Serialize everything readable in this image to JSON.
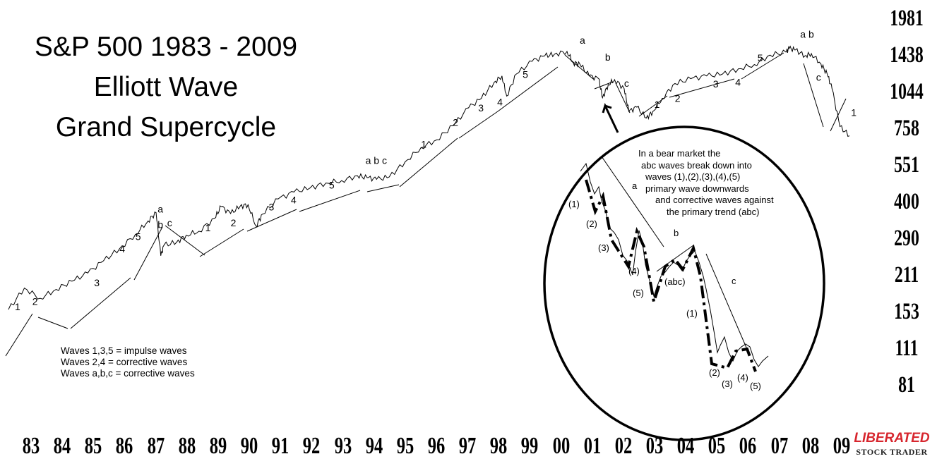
{
  "title_lines": [
    "S&P 500 1983 - 2009",
    "Elliott Wave",
    "Grand Supercycle"
  ],
  "legend_lines": [
    "Waves 1,3,5 = impulse waves",
    "Waves 2,4 = corrective waves",
    "Waves a,b,c = corrective waves"
  ],
  "inset_note_lines": [
    "In a bear market the",
    "abc waves break down into",
    "waves (1),(2),(3),(4),(5)",
    "primary wave downwards",
    "and corrective waves against",
    "the primary trend (abc)"
  ],
  "brand": {
    "line1": "LIBERATED",
    "line2": "STOCK TRADER",
    "color": "#d7262e"
  },
  "colors": {
    "price_line": "#000000",
    "trend_line": "#000000",
    "highlight": "#7a2a7a",
    "brand_red": "#d7262e"
  },
  "chart_data": {
    "type": "line",
    "scale": "log",
    "x_tick_labels": [
      "83",
      "84",
      "85",
      "86",
      "87",
      "88",
      "89",
      "90",
      "91",
      "92",
      "93",
      "94",
      "95",
      "96",
      "97",
      "98",
      "99",
      "00",
      "01",
      "02",
      "03",
      "04",
      "05",
      "06",
      "07",
      "08",
      "09"
    ],
    "y_tick_labels": [
      "1981",
      "1438",
      "1044",
      "758",
      "551",
      "400",
      "290",
      "211",
      "153",
      "111",
      "81"
    ],
    "ylim": [
      81,
      1981
    ],
    "series": [
      {
        "x": [
          1983.0,
          1983.5,
          1984.0,
          1984.5,
          1985.0,
          1985.5,
          1986.0,
          1986.5,
          1987.0,
          1987.4,
          1987.65,
          1987.8,
          1987.9,
          1988.3,
          1988.6,
          1989.0,
          1989.5,
          1989.7,
          1990.0,
          1990.3,
          1990.55,
          1990.8,
          1991.0,
          1991.5,
          1992.0,
          1992.5,
          1993.0,
          1993.5,
          1994.0,
          1994.3,
          1994.6,
          1995.0,
          1995.5,
          1996.0,
          1996.5,
          1997.0,
          1997.5,
          1997.9,
          1998.3,
          1998.55,
          1998.7,
          1999.0,
          1999.5,
          1999.9,
          2000.2,
          2000.6,
          2000.8,
          2001.0,
          2001.3,
          2001.6,
          2001.72,
          2001.9,
          2002.1,
          2002.4,
          2002.55,
          2002.8,
          2003.1,
          2003.3,
          2003.6,
          2004.0,
          2004.5,
          2005.0,
          2005.5,
          2006.0,
          2006.5,
          2007.0,
          2007.5,
          2007.6,
          2007.8,
          2008.1,
          2008.3,
          2008.6,
          2008.8,
          2008.95,
          2009.2,
          2009.5
        ],
        "y": [
          137,
          167,
          152,
          165,
          178,
          192,
          215,
          240,
          274,
          310,
          335,
          225,
          248,
          255,
          272,
          282,
          318,
          354,
          332,
          355,
          360,
          296,
          330,
          380,
          405,
          420,
          440,
          450,
          470,
          462,
          455,
          465,
          535,
          610,
          655,
          745,
          880,
          960,
          1110,
          1180,
          980,
          1200,
          1350,
          1420,
          1440,
          1480,
          1330,
          1320,
          1180,
          1150,
          965,
          1090,
          1140,
          1050,
          850,
          885,
          800,
          850,
          960,
          1100,
          1150,
          1180,
          1200,
          1260,
          1310,
          1430,
          1470,
          1520,
          1500,
          1420,
          1450,
          1320,
          1200,
          1050,
          740,
          680
        ],
        "dates_are_estimates": true
      }
    ],
    "wave_labels": [
      {
        "text": "1",
        "x": 1983.2,
        "y": 136
      },
      {
        "text": "2",
        "x": 1983.75,
        "y": 143
      },
      {
        "text": "3",
        "x": 1985.7,
        "y": 170
      },
      {
        "text": "4",
        "x": 1986.5,
        "y": 232
      },
      {
        "text": "5",
        "x": 1987.0,
        "y": 260
      },
      {
        "text": "a",
        "x": 1987.7,
        "y": 335
      },
      {
        "text": "b",
        "x": 1987.7,
        "y": 290
      },
      {
        "text": "c",
        "x": 1988.0,
        "y": 295
      },
      {
        "text": "1",
        "x": 1989.2,
        "y": 282
      },
      {
        "text": "2",
        "x": 1990.0,
        "y": 295
      },
      {
        "text": "3",
        "x": 1991.2,
        "y": 342
      },
      {
        "text": "4",
        "x": 1991.9,
        "y": 365
      },
      {
        "text": "5",
        "x": 1993.1,
        "y": 418
      },
      {
        "text": "a b c",
        "x": 1994.25,
        "y": 525
      },
      {
        "text": "1",
        "x": 1996.0,
        "y": 610
      },
      {
        "text": "2",
        "x": 1997.0,
        "y": 745
      },
      {
        "text": "3",
        "x": 1997.8,
        "y": 850
      },
      {
        "text": "4",
        "x": 1998.4,
        "y": 900
      },
      {
        "text": "5",
        "x": 1999.2,
        "y": 1160
      },
      {
        "text": "a",
        "x": 2001.0,
        "y": 1590
      },
      {
        "text": "b",
        "x": 2001.8,
        "y": 1360
      },
      {
        "text": "c",
        "x": 2002.4,
        "y": 1070
      },
      {
        "text": "1",
        "x": 2003.35,
        "y": 880
      },
      {
        "text": "2",
        "x": 2004.0,
        "y": 930
      },
      {
        "text": "3",
        "x": 2005.2,
        "y": 1060
      },
      {
        "text": "4",
        "x": 2005.9,
        "y": 1080
      },
      {
        "text": "5",
        "x": 2006.6,
        "y": 1350
      },
      {
        "text": "a b",
        "x": 2007.95,
        "y": 1680
      },
      {
        "text": "c",
        "x": 2008.45,
        "y": 1130
      },
      {
        "text": "1",
        "x": 2009.55,
        "y": 815
      }
    ],
    "inset": {
      "labels": [
        "a",
        "b",
        "c",
        "(1)",
        "(2)",
        "(3)",
        "(4)",
        "(5)",
        "(abc)",
        "(1)",
        "(2)",
        "(3)",
        "(4)",
        "(5)"
      ]
    }
  }
}
